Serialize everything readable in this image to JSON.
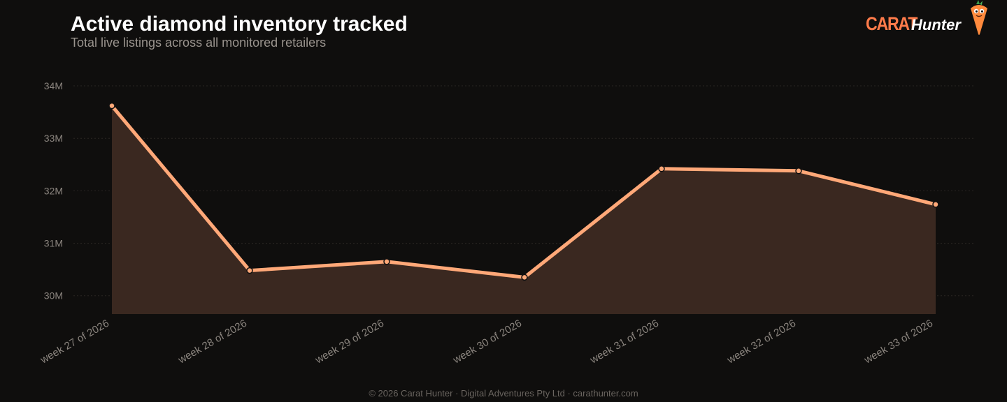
{
  "header": {
    "title": "Active diamond inventory tracked",
    "subtitle": "Total live listings across all monitored retailers"
  },
  "brand": {
    "word1": "CARAT",
    "word2": "Hunter",
    "mascot_icon": "carrot-mascot-icon",
    "accent_color": "#ff7b4a"
  },
  "footer": {
    "copyright": "© 2026 Carat Hunter · Digital Adventures Pty Ltd · carathunter.com"
  },
  "chart_data": {
    "type": "area",
    "categories": [
      "week 27 of 2026",
      "week 28 of 2026",
      "week 29 of 2026",
      "week 30 of 2026",
      "week 31 of 2026",
      "week 32 of 2026",
      "week 33 of 2026"
    ],
    "values": [
      33.62,
      30.48,
      30.65,
      30.35,
      32.42,
      32.38,
      31.74
    ],
    "unit": "M",
    "yticks": [
      30,
      31,
      32,
      33,
      34
    ],
    "ytick_labels": [
      "30M",
      "31M",
      "32M",
      "33M",
      "34M"
    ],
    "ylim": [
      29.65,
      34.2
    ],
    "grid": true,
    "line_color": "#ffa878",
    "fill_color": "#3a2820"
  }
}
